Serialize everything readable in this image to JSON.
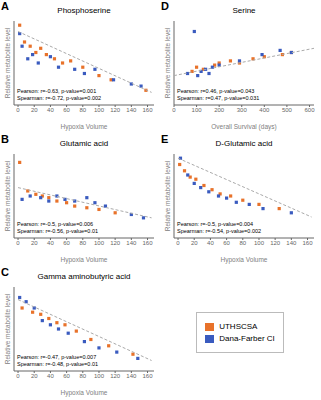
{
  "chart_data": [
    {
      "type": "scatter",
      "panel_label": "A",
      "title": "Phosphoserine",
      "x_label": "Hypoxia Volume",
      "y_label": "Relative metabolite level",
      "xlim": [
        -5,
        168
      ],
      "xticks": [
        0,
        20,
        40,
        60,
        80,
        100,
        120,
        140,
        160
      ],
      "ylim": [
        0,
        4
      ],
      "tick_labels": "x",
      "grid": false,
      "annotation": "Pearson: r=-0.63, p-value=0.001\nSpearman: r=-0.72, p-value=0.002",
      "series": [
        {
          "name": "UTHSCSA",
          "color": "#e8722a",
          "marker": "square",
          "x": [
            2,
            8,
            15,
            22,
            28,
            35,
            45,
            55,
            65,
            80,
            100,
            115,
            158
          ],
          "values": [
            3.8,
            3.0,
            2.8,
            2.5,
            2.7,
            2.4,
            2.2,
            2.0,
            2.1,
            1.8,
            1.4,
            1.2,
            0.7
          ]
        },
        {
          "name": "Dana-Farber CI",
          "color": "#3a5bbf",
          "marker": "square",
          "x": [
            2,
            5,
            12,
            18,
            25,
            40,
            50,
            70,
            82,
            95,
            118,
            140,
            152
          ],
          "values": [
            3.4,
            2.8,
            2.2,
            2.4,
            2.0,
            2.3,
            1.8,
            1.7,
            1.5,
            1.7,
            1.2,
            1.0,
            0.9
          ]
        },
        {
          "type": "line",
          "color": "#aaaaaa",
          "line_style": "dashed",
          "x": [
            0,
            165
          ],
          "values": [
            3.5,
            0.6
          ]
        }
      ]
    },
    {
      "type": "scatter",
      "panel_label": "D",
      "title": "Serine",
      "x_label": "Overall Survival (days)",
      "y_label": "Relative metabolite level",
      "xlim": [
        0,
        620
      ],
      "xticks": [
        0,
        100,
        200,
        300,
        400,
        500,
        600
      ],
      "ylim": [
        0,
        4
      ],
      "tick_labels": "x",
      "grid": false,
      "annotation": "Pearson: r=0.46, p-value=0.043\nSpearman: r=0.47, p-value=0.031",
      "series": [
        {
          "name": "UTHSCSA",
          "color": "#e8722a",
          "marker": "square",
          "x": [
            80,
            100,
            130,
            180,
            200,
            250,
            290,
            350,
            400,
            480,
            520
          ],
          "values": [
            1.6,
            1.8,
            1.7,
            1.9,
            2.0,
            2.1,
            2.0,
            2.2,
            2.3,
            2.4,
            2.5
          ]
        },
        {
          "name": "Dana-Farber CI",
          "color": "#3a5bbf",
          "marker": "square",
          "x": [
            60,
            90,
            105,
            120,
            140,
            155,
            170,
            200,
            290,
            390,
            470,
            520
          ],
          "values": [
            1.5,
            3.5,
            1.4,
            1.6,
            1.7,
            1.5,
            1.8,
            1.9,
            2.1,
            2.4,
            2.6,
            2.5
          ]
        },
        {
          "type": "line",
          "color": "#aaaaaa",
          "line_style": "dashed",
          "x": [
            0,
            620
          ],
          "values": [
            1.4,
            2.7
          ]
        }
      ]
    },
    {
      "type": "scatter",
      "panel_label": "B",
      "title": "Glutamic acid",
      "x_label": "Hypoxia Volume",
      "y_label": "Relative metabolite level",
      "xlim": [
        -5,
        168
      ],
      "xticks": [
        0,
        20,
        40,
        60,
        80,
        100,
        120,
        140,
        160
      ],
      "ylim": [
        0,
        5
      ],
      "tick_labels": "x",
      "grid": false,
      "annotation": "Pearson: r=-0.5, p-value=0.006\nSpearman: r=-0.56, p-value=0.01",
      "series": [
        {
          "name": "UTHSCSA",
          "color": "#e8722a",
          "marker": "square",
          "x": [
            2,
            12,
            22,
            30,
            38,
            48,
            60,
            70,
            85,
            100,
            120
          ],
          "values": [
            4.5,
            2.8,
            2.6,
            2.5,
            2.4,
            2.2,
            2.1,
            1.9,
            1.8,
            1.7,
            1.5
          ]
        },
        {
          "name": "Dana-Farber CI",
          "color": "#3a5bbf",
          "marker": "square",
          "x": [
            5,
            15,
            28,
            38,
            48,
            58,
            70,
            85,
            95,
            108,
            140,
            155
          ],
          "values": [
            2.3,
            2.5,
            2.4,
            2.2,
            2.5,
            2.3,
            2.2,
            2.4,
            2.1,
            1.9,
            1.4,
            1.2
          ]
        },
        {
          "type": "line",
          "color": "#aaaaaa",
          "line_style": "dashed",
          "x": [
            0,
            165
          ],
          "values": [
            3.0,
            1.2
          ]
        }
      ]
    },
    {
      "type": "scatter",
      "panel_label": "E",
      "title": "D-Glutamic acid",
      "x_label": "Hypoxia Volume",
      "y_label": "Relative metabolite level",
      "xlim": [
        -5,
        168
      ],
      "xticks": [
        0,
        20,
        40,
        60,
        80,
        100,
        120,
        140,
        160
      ],
      "ylim": [
        0,
        4
      ],
      "tick_labels": "x",
      "grid": false,
      "annotation": "Pearson: r=-0.5, p-value=0.004\nSpearman: r=-0.54, p-value=0.002",
      "series": [
        {
          "name": "UTHSCSA",
          "color": "#e8722a",
          "marker": "square",
          "x": [
            2,
            8,
            15,
            22,
            32,
            42,
            52,
            65,
            80,
            100,
            125
          ],
          "values": [
            3.5,
            3.2,
            2.9,
            2.8,
            2.5,
            2.3,
            2.1,
            2.0,
            1.8,
            1.6,
            1.4
          ]
        },
        {
          "name": "Dana-Farber CI",
          "color": "#3a5bbf",
          "marker": "square",
          "x": [
            3,
            12,
            20,
            28,
            38,
            50,
            60,
            72,
            88,
            105,
            140
          ],
          "values": [
            3.8,
            3.0,
            2.6,
            2.4,
            2.2,
            2.0,
            1.9,
            1.7,
            1.6,
            1.4,
            1.2
          ]
        },
        {
          "type": "line",
          "color": "#aaaaaa",
          "line_style": "dashed",
          "x": [
            0,
            165
          ],
          "values": [
            3.8,
            1.0
          ]
        }
      ]
    },
    {
      "type": "scatter",
      "panel_label": "C",
      "title": "Gamma aminobutyric acid",
      "x_label": "Hypoxia Volume",
      "y_label": "Relative metabolite level",
      "xlim": [
        -5,
        168
      ],
      "xticks": [
        0,
        20,
        40,
        60,
        80,
        100,
        120,
        140,
        160
      ],
      "ylim": [
        0,
        4
      ],
      "tick_labels": "x",
      "grid": false,
      "annotation": "Pearson: r=-0.47, p-value=0.007\nSpearman: r=-0.48, p-value=0.01",
      "series": [
        {
          "name": "UTHSCSA",
          "color": "#e8722a",
          "marker": "square",
          "x": [
            5,
            18,
            28,
            38,
            48,
            58,
            72,
            90,
            112,
            142
          ],
          "values": [
            3.0,
            2.8,
            2.7,
            2.5,
            2.3,
            2.2,
            1.9,
            1.5,
            1.2,
            0.8
          ]
        },
        {
          "name": "Dana-Farber CI",
          "color": "#3a5bbf",
          "marker": "square",
          "x": [
            2,
            10,
            20,
            30,
            40,
            50,
            62,
            82,
            100,
            122,
            148
          ],
          "values": [
            3.5,
            3.3,
            3.0,
            2.4,
            2.2,
            2.0,
            1.8,
            1.4,
            1.1,
            0.9,
            0.6
          ]
        },
        {
          "type": "line",
          "color": "#aaaaaa",
          "line_style": "dashed",
          "x": [
            0,
            165
          ],
          "values": [
            3.4,
            0.5
          ]
        }
      ]
    }
  ]
}
